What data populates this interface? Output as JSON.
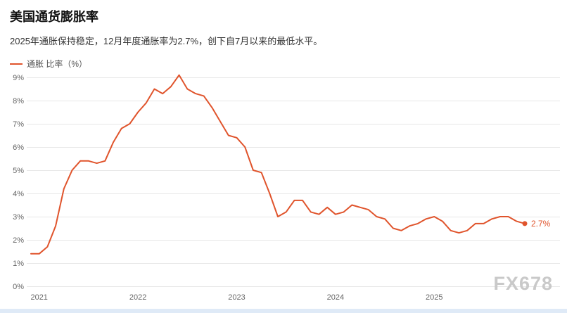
{
  "header": {
    "title": "美国通货膨胀率",
    "subtitle": "2025年通胀保持稳定，12月年度通胀率为2.7%，创下自7月以来的最低水平。"
  },
  "legend": {
    "label": "通胀 比率（%）"
  },
  "watermark": {
    "text": "FX678"
  },
  "colors": {
    "line": "#e0542c",
    "grid": "#e7e7e7",
    "axis_text": "#666666",
    "end_label": "#e0542c"
  },
  "chart_data": {
    "type": "line",
    "title": "美国通货膨胀率",
    "x_start": "2020-12",
    "x_frequency": "monthly",
    "series": [
      {
        "name": "通胀 比率（%）",
        "values": [
          1.4,
          1.4,
          1.7,
          2.6,
          4.2,
          5.0,
          5.4,
          5.4,
          5.3,
          5.4,
          6.2,
          6.8,
          7.0,
          7.5,
          7.9,
          8.5,
          8.3,
          8.6,
          9.1,
          8.5,
          8.3,
          8.2,
          7.7,
          7.1,
          6.5,
          6.4,
          6.0,
          5.0,
          4.9,
          4.0,
          3.0,
          3.2,
          3.7,
          3.7,
          3.2,
          3.1,
          3.4,
          3.1,
          3.2,
          3.5,
          3.4,
          3.3,
          3.0,
          2.9,
          2.5,
          2.4,
          2.6,
          2.7,
          2.9,
          3.0,
          2.8,
          2.4,
          2.3,
          2.4,
          2.7,
          2.7,
          2.9,
          3.0,
          3.0,
          2.8,
          2.7
        ]
      }
    ],
    "x_tick_labels": [
      "2021",
      "2022",
      "2023",
      "2024",
      "2025"
    ],
    "x_tick_month_indices": [
      1,
      13,
      25,
      37,
      49
    ],
    "y_tick_labels": [
      "0%",
      "1%",
      "2%",
      "3%",
      "4%",
      "5%",
      "6%",
      "7%",
      "8%",
      "9%"
    ],
    "ylim": [
      0,
      9
    ],
    "grid": "horizontal",
    "legend_position": "top-left",
    "end_label": "2.7%"
  }
}
